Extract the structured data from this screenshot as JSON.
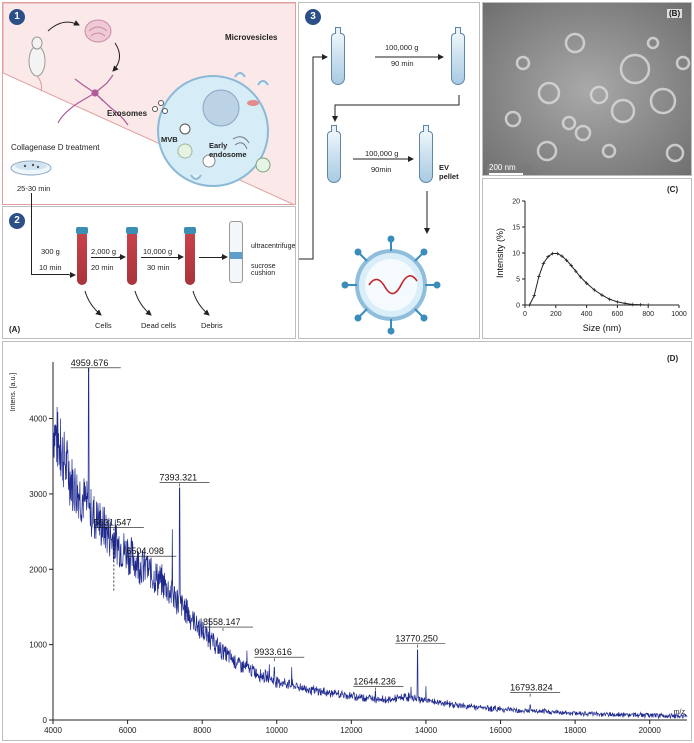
{
  "panel_labels": {
    "a": "(A)",
    "b": "(B)",
    "c": "(C)",
    "d": "(D)"
  },
  "steps": {
    "one": "1",
    "two": "2",
    "three": "3"
  },
  "step1": {
    "microvesicles": "Microvesicles",
    "exosomes": "Exosomes",
    "mvb": "MVB",
    "early_endosome": "Early\nendosome",
    "collagenase": "Collagenase D treatment",
    "collagenase_time": "25-30 min"
  },
  "step2": {
    "spin1_speed": "300 g",
    "spin1_time": "10 min",
    "spin2_speed": "2,000 g",
    "spin2_time": "20 min",
    "spin3_speed": "10,000 g",
    "spin3_time": "30 min",
    "out1": "Cells",
    "out2": "Dead cells",
    "out3": "Debris",
    "ultracentrifuge": "ultracentrifuge",
    "sucrose": "sucrose\ncushion"
  },
  "step3": {
    "uc1_speed": "100,000 g",
    "uc1_time": "90 min",
    "uc2_speed": "100,000 g",
    "uc2_time": "90min",
    "ev_pellet": "EV\npellet"
  },
  "tem": {
    "scale_bar": "200 nm"
  },
  "colors": {
    "spectrum": "#1f2a8f",
    "step_badge": "#2b4f86",
    "panel1_fill": "#fbe9e9",
    "panel1_border": "#e0a0a0"
  },
  "chart_data": [
    {
      "type": "line",
      "panel": "(C)",
      "xlabel": "Size (nm)",
      "ylabel": "Intensity (%)",
      "xlim": [
        0,
        1000
      ],
      "ylim": [
        0,
        20
      ],
      "xticks": [
        0,
        200,
        400,
        600,
        800,
        1000
      ],
      "yticks": [
        0,
        5,
        10,
        15,
        20
      ],
      "x": [
        30,
        60,
        90,
        120,
        150,
        180,
        210,
        240,
        270,
        300,
        330,
        360,
        400,
        450,
        500,
        550,
        600,
        650,
        700,
        750,
        800
      ],
      "y": [
        0,
        1.8,
        5.5,
        8.0,
        9.3,
        9.9,
        9.9,
        9.4,
        8.6,
        7.6,
        6.5,
        5.4,
        4.2,
        2.9,
        1.9,
        1.1,
        0.6,
        0.3,
        0.1,
        0.05,
        0
      ]
    },
    {
      "type": "line",
      "panel": "(D)",
      "xlabel": "m/z",
      "ylabel": "Intens. [a.u.]",
      "xlim": [
        4000,
        21000
      ],
      "ylim": [
        0,
        4750
      ],
      "xticks": [
        4000,
        6000,
        8000,
        10000,
        12000,
        14000,
        16000,
        18000,
        20000
      ],
      "yticks": [
        0,
        1000,
        2000,
        3000,
        4000
      ],
      "baseline": {
        "x": [
          4000,
          4200,
          4500,
          5000,
          5500,
          6000,
          6500,
          7000,
          7500,
          8000,
          8500,
          9000,
          9500,
          10000,
          11000,
          12000,
          13000,
          13500,
          14000,
          15000,
          16000,
          17000,
          18000,
          19000,
          20000,
          21000
        ],
        "y": [
          3800,
          3500,
          3100,
          2700,
          2400,
          2150,
          1950,
          1750,
          1450,
          1150,
          900,
          720,
          600,
          500,
          380,
          310,
          260,
          300,
          250,
          180,
          140,
          110,
          90,
          70,
          60,
          50
        ]
      },
      "peaks": [
        {
          "mz": 4959.676,
          "intensity": 4670,
          "label": "4959.676"
        },
        {
          "mz": 5631.547,
          "intensity": 2480,
          "label": "5631.547"
        },
        {
          "mz": 6504.098,
          "intensity": 2130,
          "label": "6504.098"
        },
        {
          "mz": 7393.321,
          "intensity": 3080,
          "label": "7393.321"
        },
        {
          "mz": 8558.147,
          "intensity": 1000,
          "label": "8558.147"
        },
        {
          "mz": 9933.616,
          "intensity": 700,
          "label": "9933.616"
        },
        {
          "mz": 12644.236,
          "intensity": 380,
          "label": "12644.236"
        },
        {
          "mz": 13770.25,
          "intensity": 930,
          "label": "13770.250"
        },
        {
          "mz": 16793.824,
          "intensity": 200,
          "label": "16793.824"
        }
      ]
    }
  ]
}
